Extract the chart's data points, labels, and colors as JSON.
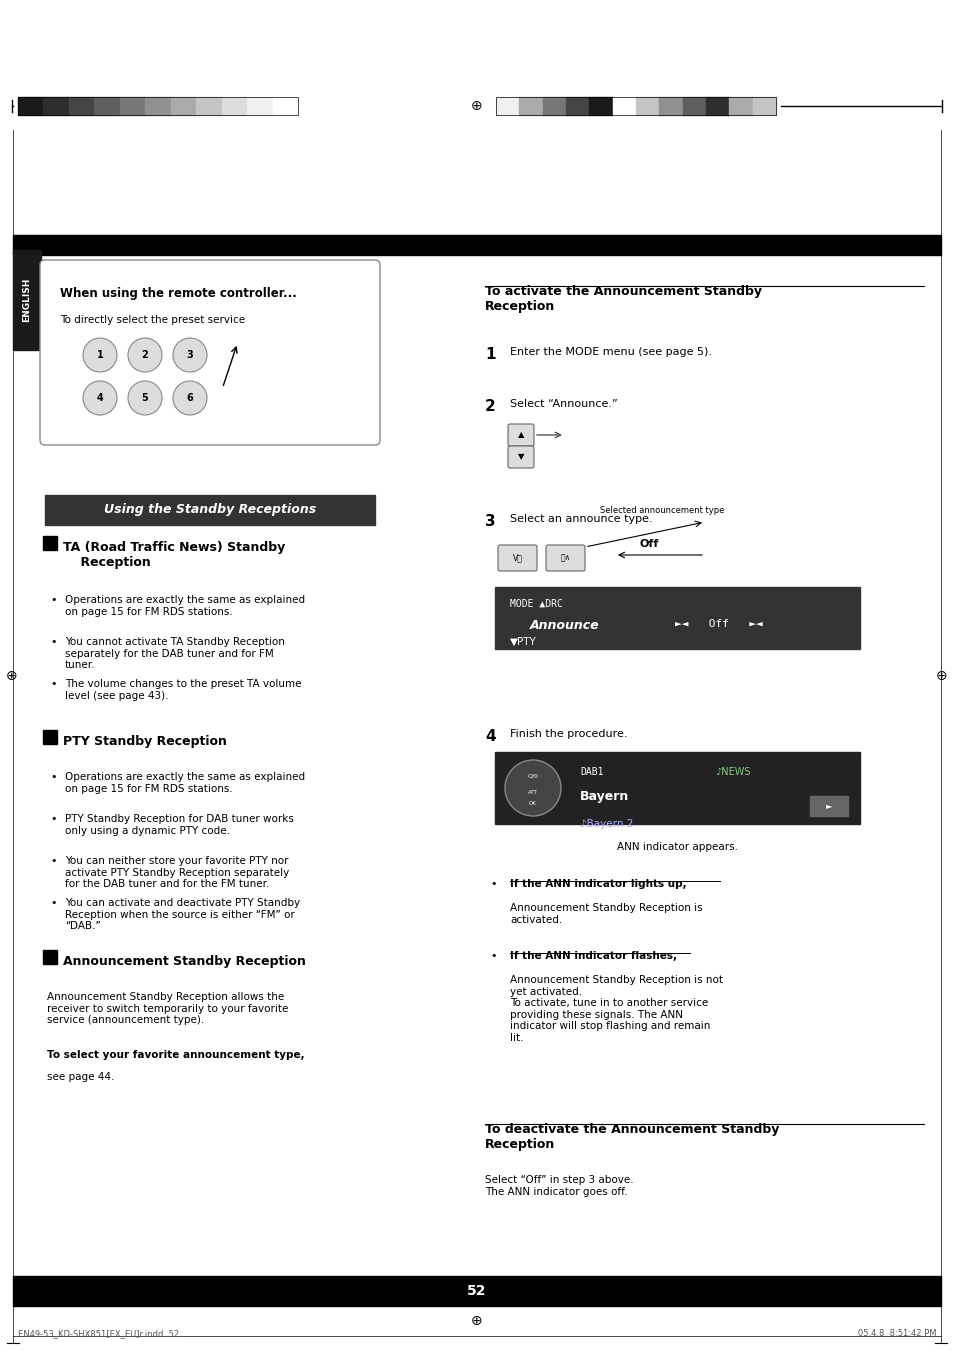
{
  "page_bg": "#ffffff",
  "page_width": 9.54,
  "page_height": 13.51,
  "dpi": 100,
  "top_bar_left_colors": [
    "#1a1a1a",
    "#2e2e2e",
    "#454545",
    "#5e5e5e",
    "#777777",
    "#909090",
    "#aaaaaa",
    "#c4c4c4",
    "#dddddd",
    "#f0f0f0",
    "#ffffff"
  ],
  "top_bar_right_colors": [
    "#f0f0f0",
    "#aaaaaa",
    "#777777",
    "#454545",
    "#1a1a1a",
    "#ffffff",
    "#c4c4c4",
    "#909090",
    "#5e5e5e",
    "#2e2e2e",
    "#aaaaaa",
    "#c4c4c4"
  ],
  "english_tab_text": "ENGLISH",
  "english_tab_bg": "#1a1a1a",
  "english_tab_text_color": "#ffffff",
  "remote_box_title": "When using the remote controller...",
  "remote_box_subtitle": "To directly select the preset service",
  "section_header_bg": "#333333",
  "section_header_text": "Using the Standby Receptions",
  "section_header_text_color": "#ffffff",
  "ta_header": "TA (Road Traffic News) Standby\n    Reception",
  "ta_bullets": [
    "Operations are exactly the same as explained\non page 15 for FM RDS stations.",
    "You cannot activate TA Standby Reception\nseparately for the DAB tuner and for FM\ntuner.",
    "The volume changes to the preset TA volume\nlevel (see page 43)."
  ],
  "pty_header": "PTY Standby Reception",
  "pty_bullets": [
    "Operations are exactly the same as explained\non page 15 for FM RDS stations.",
    "PTY Standby Reception for DAB tuner works\nonly using a dynamic PTY code.",
    "You can neither store your favorite PTY nor\nactivate PTY Standby Reception separately\nfor the DAB tuner and for the FM tuner.",
    "You can activate and deactivate PTY Standby\nReception when the source is either “FM” or\n“DAB.”"
  ],
  "ann_header": "Announcement Standby Reception",
  "ann_body": "Announcement Standby Reception allows the\nreceiver to switch temporarily to your favorite\nservice (announcement type).",
  "ann_bold_line": "To select your favorite announcement type,",
  "ann_bold_line2": "see page 44.",
  "right_col_activate_header": "To activate the Announcement Standby\nReception",
  "right_step1_bold": "1",
  "right_step1_text": "Enter the MODE menu (see page 5).",
  "right_step2_bold": "2",
  "right_step2_text": "Select “Announce.”",
  "right_step3_bold": "3",
  "right_step3_text": "Select an announce type.",
  "right_step3_label1": "Selected announcement type",
  "right_step3_label2": "Off",
  "right_step4_bold": "4",
  "right_step4_text": "Finish the procedure.",
  "ann_indicator_text": "ANN indicator appears.",
  "ann_bullet1_bold": "If the ANN indicator lights up,",
  "ann_bullet1": "Announcement Standby Reception is\nactivated.",
  "ann_bullet2_bold": "If the ANN indicator flashes,",
  "ann_bullet2": "Announcement Standby Reception is not\nyet activated.\nTo activate, tune in to another service\nproviding these signals. The ANN\nindicator will stop flashing and remain\nlit.",
  "deactivate_header": "To deactivate the Announcement Standby\nReception",
  "deactivate_body": "Select “Off” in step 3 above.\nThe ANN indicator goes off.",
  "page_number": "52",
  "footer_left": "EN49-53_KD-SHX851[EX_EU]r.indd  52",
  "footer_right": "05.4.8  8:51:42 PM"
}
